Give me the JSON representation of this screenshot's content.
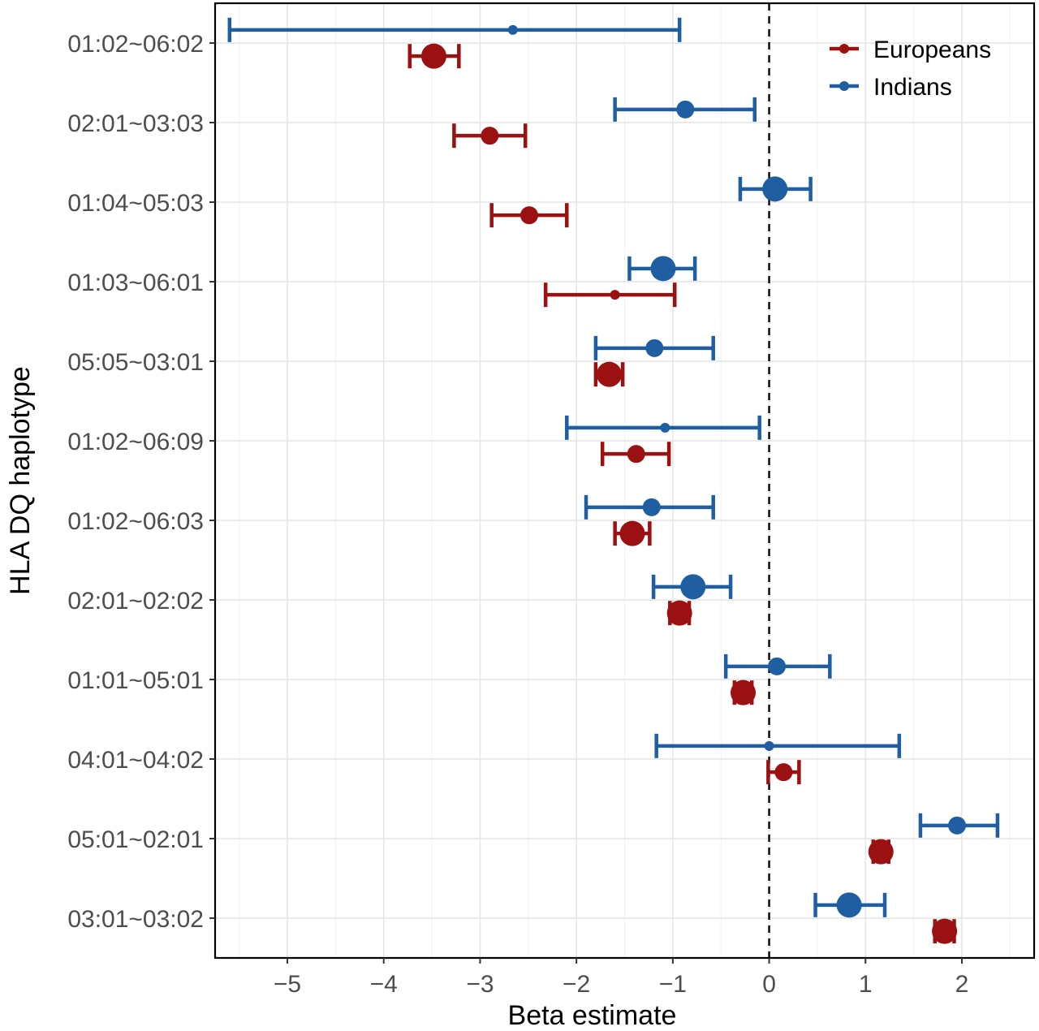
{
  "chart_data": {
    "type": "scatter",
    "subtype": "forest-plot",
    "title": "",
    "xlabel": "Beta estimate",
    "ylabel": "HLA DQ haplotype",
    "xlim": [
      -5.75,
      2.75
    ],
    "x_ticks": [
      -5,
      -4,
      -3,
      -2,
      -1,
      0,
      1,
      2
    ],
    "x_tick_labels": [
      "−5",
      "−4",
      "−3",
      "−2",
      "−1",
      "0",
      "1",
      "2"
    ],
    "reference_line_x": 0,
    "grid": true,
    "legend_position": "top-right",
    "categories": [
      "01:02~06:02",
      "02:01~03:03",
      "01:04~05:03",
      "01:03~06:01",
      "05:05~03:01",
      "01:02~06:09",
      "01:02~06:03",
      "02:01~02:02",
      "01:01~05:01",
      "04:01~04:02",
      "05:01~02:01",
      "03:01~03:02"
    ],
    "series": [
      {
        "name": "Europeans",
        "color": "#9b1010",
        "estimate": [
          -3.48,
          -2.9,
          -2.49,
          -1.6,
          -1.66,
          -1.38,
          -1.42,
          -0.93,
          -0.27,
          0.15,
          1.16,
          1.82
        ],
        "lower": [
          -3.73,
          -3.27,
          -2.88,
          -2.32,
          -1.8,
          -1.73,
          -1.6,
          -1.03,
          -0.36,
          -0.01,
          1.08,
          1.72
        ],
        "upper": [
          -3.22,
          -2.53,
          -2.1,
          -0.98,
          -1.52,
          -1.04,
          -1.24,
          -0.83,
          -0.18,
          0.31,
          1.24,
          1.92
        ],
        "point_size": [
          3,
          2,
          2,
          1,
          3,
          2,
          3,
          3,
          3,
          2,
          3,
          3
        ]
      },
      {
        "name": "Indians",
        "color": "#1f5ea0",
        "estimate": [
          -2.66,
          -0.87,
          0.06,
          -1.1,
          -1.19,
          -1.08,
          -1.22,
          -0.79,
          0.08,
          0.0,
          1.95,
          0.83
        ],
        "lower": [
          -5.6,
          -1.6,
          -0.3,
          -1.45,
          -1.8,
          -2.1,
          -1.9,
          -1.2,
          -0.45,
          -1.17,
          1.57,
          0.48
        ],
        "upper": [
          -0.93,
          -0.15,
          0.43,
          -0.77,
          -0.58,
          -0.1,
          -0.58,
          -0.4,
          0.63,
          1.35,
          2.37,
          1.2
        ],
        "point_size": [
          1,
          2,
          3,
          3,
          2,
          1,
          2,
          3,
          2,
          1,
          2,
          3
        ]
      }
    ]
  }
}
